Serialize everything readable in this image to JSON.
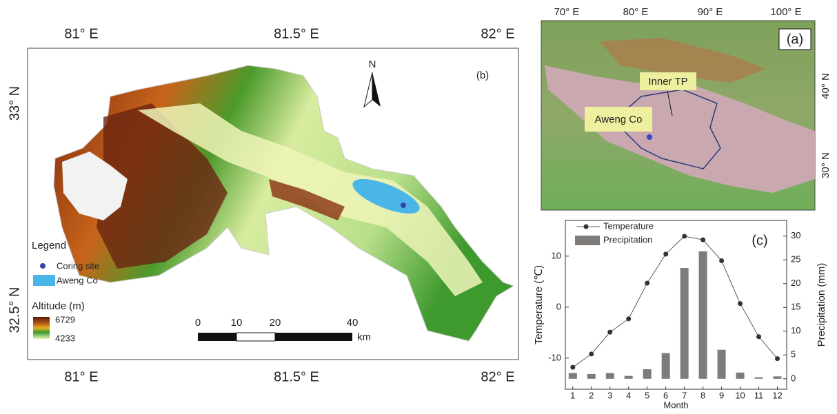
{
  "panel_b": {
    "label": "(b)",
    "x_labels_top": [
      "81° E",
      "81.5° E",
      "82° E"
    ],
    "x_labels_bottom": [
      "81° E",
      "81.5° E",
      "82° E"
    ],
    "y_labels": [
      "33° N",
      "32.5° N"
    ],
    "north": "N",
    "legend": {
      "title": "Legend",
      "items": [
        "Coring site",
        "Aweng Co"
      ],
      "altitude_title": "Altitude (m)",
      "altitude_max": 6729,
      "altitude_min": 4233
    },
    "scale_bar": {
      "ticks": [
        "0",
        "10",
        "20",
        "40"
      ],
      "unit": "km"
    }
  },
  "panel_a": {
    "label": "(a)",
    "x_labels": [
      "70° E",
      "80° E",
      "90° E",
      "100° E"
    ],
    "y_labels": [
      "40° N",
      "30° N"
    ],
    "annotations": [
      "Inner TP",
      "Aweng Co"
    ]
  },
  "chart_data": {
    "type": "combo",
    "label": "(c)",
    "x": [
      1,
      2,
      3,
      4,
      5,
      6,
      7,
      8,
      9,
      10,
      11,
      12
    ],
    "xlabel": "Month",
    "ylabel": "Temperature (℃)",
    "y2label": "Precipitation (mm)",
    "xlim": [
      0.6,
      12.5
    ],
    "xticks": [
      1,
      2,
      3,
      4,
      5,
      6,
      7,
      8,
      9,
      10,
      11,
      12
    ],
    "ylim": [
      -16.1,
      17
    ],
    "yticks": [
      -10,
      0,
      10
    ],
    "y2lim": [
      -2.2,
      33.3
    ],
    "y2ticks": [
      0,
      5,
      10,
      15,
      20,
      25,
      30
    ],
    "series": [
      {
        "name": "Temperature",
        "type": "line",
        "color": "#333333",
        "values": [
          -11.8,
          -9.2,
          -4.9,
          -2.3,
          4.7,
          10.4,
          13.9,
          13.2,
          9.1,
          0.7,
          -5.8,
          -10.1
        ]
      },
      {
        "name": "Precipitation",
        "type": "bar",
        "axis": "y2",
        "color": "#7f7b78",
        "values": [
          1.2,
          1.0,
          1.2,
          0.6,
          2.0,
          5.4,
          23.3,
          26.8,
          6.1,
          1.3,
          0.3,
          0.5
        ]
      }
    ]
  }
}
